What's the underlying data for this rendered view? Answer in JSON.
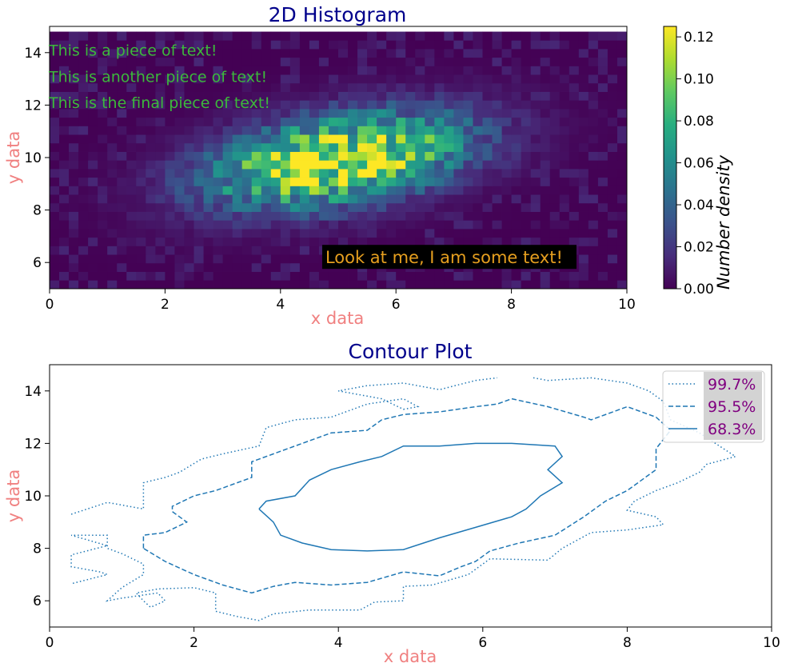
{
  "chart_data": [
    {
      "type": "heatmap",
      "title": "2D Histogram",
      "xlabel": "x data",
      "ylabel": "y data",
      "xlim": [
        0,
        10
      ],
      "ylim": [
        5,
        15
      ],
      "xticks": [
        "0",
        "2",
        "4",
        "6",
        "8",
        "10"
      ],
      "yticks": [
        "6",
        "8",
        "10",
        "12",
        "14"
      ],
      "bins": {
        "nx": 60,
        "ny": 30,
        "x_range": [
          0,
          10
        ],
        "y_range": [
          5,
          14.8
        ]
      },
      "distribution": {
        "kind": "correlated-gaussian",
        "mean_x": 5.0,
        "mean_y": 9.9,
        "sd_x": 1.55,
        "sd_y": 1.25,
        "correlation": 0.4
      },
      "peak_density": 0.125,
      "colorbar": {
        "label": "Number density",
        "range": [
          0,
          0.125
        ],
        "ticks": [
          "0.00",
          "0.02",
          "0.04",
          "0.06",
          "0.08",
          "0.10",
          "0.12"
        ],
        "colormap": "viridis"
      },
      "annotations": [
        {
          "text": "This is a piece of text!",
          "x": 0.0,
          "y": 14.1
        },
        {
          "text": "This is another piece of text!",
          "x": 0.0,
          "y": 13.1
        },
        {
          "text": "This is the final piece of text!",
          "x": 0.0,
          "y": 12.1
        },
        {
          "text": "Look at me, I am some text!",
          "x": 4.75,
          "y": 6.0
        }
      ],
      "annotation_colors": {
        "green": "#3cb83c",
        "orange": "#e69f1f",
        "box": "#000000"
      }
    },
    {
      "type": "line",
      "title": "Contour Plot",
      "xlabel": "x data",
      "ylabel": "y data",
      "xlim": [
        0,
        10
      ],
      "ylim": [
        5,
        15
      ],
      "xticks": [
        "0",
        "2",
        "4",
        "6",
        "8",
        "10"
      ],
      "yticks": [
        "6",
        "8",
        "10",
        "12",
        "14"
      ],
      "legend": {
        "position": "top-right"
      },
      "series": [
        {
          "name": "99.7%",
          "style": "dotted",
          "paths": [
            [
              [
                0.3,
                9.3
              ],
              [
                0.8,
                9.75
              ],
              [
                1.3,
                9.5
              ],
              [
                1.3,
                10.5
              ],
              [
                1.6,
                10.7
              ],
              [
                1.8,
                10.9
              ],
              [
                2.1,
                11.4
              ],
              [
                2.4,
                11.6
              ],
              [
                2.9,
                11.9
              ],
              [
                3.0,
                12.6
              ],
              [
                3.4,
                12.9
              ],
              [
                3.9,
                13.0
              ],
              [
                4.4,
                13.5
              ],
              [
                4.9,
                13.7
              ],
              [
                5.1,
                13.4
              ],
              [
                4.9,
                13.3
              ],
              [
                4.6,
                13.7
              ],
              [
                4.0,
                14.0
              ],
              [
                4.4,
                14.2
              ],
              [
                4.9,
                14.3
              ],
              [
                5.4,
                14.05
              ],
              [
                5.9,
                14.4
              ],
              [
                6.2,
                14.5
              ]
            ],
            [
              [
                6.7,
                14.5
              ],
              [
                6.9,
                14.4
              ],
              [
                7.5,
                14.5
              ],
              [
                8.0,
                14.3
              ],
              [
                8.3,
                14.0
              ],
              [
                8.5,
                13.6
              ],
              [
                8.6,
                12.9
              ],
              [
                9.0,
                12.4
              ],
              [
                9.5,
                11.5
              ],
              [
                9.1,
                11.2
              ],
              [
                9.0,
                10.9
              ],
              [
                8.7,
                10.5
              ],
              [
                8.4,
                10.2
              ],
              [
                8.1,
                9.8
              ],
              [
                8.0,
                9.45
              ],
              [
                8.4,
                9.2
              ],
              [
                8.5,
                8.9
              ],
              [
                8.0,
                8.7
              ],
              [
                7.5,
                8.6
              ],
              [
                7.1,
                8.0
              ],
              [
                6.9,
                7.55
              ],
              [
                6.1,
                7.6
              ],
              [
                5.8,
                7.0
              ],
              [
                5.3,
                6.6
              ],
              [
                4.9,
                6.55
              ],
              [
                4.9,
                6.0
              ],
              [
                4.5,
                5.95
              ],
              [
                4.3,
                5.65
              ],
              [
                3.6,
                5.65
              ],
              [
                3.1,
                5.5
              ],
              [
                2.9,
                5.25
              ],
              [
                2.6,
                5.4
              ],
              [
                2.3,
                5.6
              ],
              [
                2.3,
                6.3
              ],
              [
                2.0,
                6.5
              ],
              [
                1.5,
                6.45
              ],
              [
                1.2,
                6.3
              ],
              [
                1.3,
                6.0
              ],
              [
                1.4,
                5.75
              ],
              [
                1.6,
                6.0
              ],
              [
                1.5,
                6.3
              ],
              [
                1.0,
                6.1
              ],
              [
                0.8,
                6.0
              ],
              [
                1.0,
                6.5
              ],
              [
                1.3,
                7.0
              ],
              [
                1.3,
                7.4
              ],
              [
                1.0,
                7.8
              ],
              [
                0.8,
                8.0
              ],
              [
                0.8,
                8.5
              ],
              [
                0.3,
                8.5
              ],
              [
                0.8,
                8.1
              ],
              [
                0.3,
                7.75
              ],
              [
                0.3,
                7.3
              ],
              [
                0.7,
                7.1
              ],
              [
                0.8,
                7.0
              ],
              [
                0.3,
                6.65
              ]
            ]
          ]
        },
        {
          "name": "95.5%",
          "style": "dashed",
          "paths": [
            [
              [
                1.3,
                8.0
              ],
              [
                1.3,
                8.5
              ],
              [
                1.6,
                8.6
              ],
              [
                1.9,
                9.0
              ],
              [
                1.7,
                9.4
              ],
              [
                1.7,
                9.6
              ],
              [
                2.0,
                10.0
              ],
              [
                2.3,
                10.2
              ],
              [
                2.8,
                10.7
              ],
              [
                2.8,
                11.3
              ],
              [
                3.2,
                11.7
              ],
              [
                3.5,
                12.0
              ],
              [
                3.9,
                12.4
              ],
              [
                4.4,
                12.5
              ],
              [
                4.6,
                12.9
              ],
              [
                4.9,
                13.1
              ],
              [
                5.4,
                13.2
              ],
              [
                5.9,
                13.4
              ],
              [
                6.2,
                13.5
              ],
              [
                6.4,
                13.7
              ],
              [
                6.9,
                13.4
              ],
              [
                7.4,
                13.0
              ],
              [
                7.5,
                12.9
              ],
              [
                8.0,
                13.4
              ],
              [
                8.4,
                13.0
              ],
              [
                8.6,
                12.5
              ],
              [
                8.4,
                11.8
              ],
              [
                8.4,
                11.0
              ],
              [
                8.0,
                10.2
              ],
              [
                7.7,
                9.8
              ],
              [
                7.4,
                9.2
              ],
              [
                7.0,
                8.5
              ],
              [
                6.5,
                8.2
              ],
              [
                6.1,
                7.9
              ],
              [
                5.9,
                7.5
              ],
              [
                5.7,
                7.3
              ],
              [
                5.4,
                6.95
              ],
              [
                4.9,
                7.1
              ],
              [
                4.4,
                6.7
              ],
              [
                3.9,
                6.6
              ],
              [
                3.4,
                6.7
              ],
              [
                3.1,
                6.55
              ],
              [
                2.8,
                6.3
              ],
              [
                2.4,
                6.6
              ],
              [
                2.0,
                7.0
              ],
              [
                1.6,
                7.5
              ],
              [
                1.3,
                8.0
              ]
            ]
          ]
        },
        {
          "name": "68.3%",
          "style": "solid",
          "paths": [
            [
              [
                2.9,
                9.5
              ],
              [
                3.1,
                9.0
              ],
              [
                3.2,
                8.5
              ],
              [
                3.5,
                8.2
              ],
              [
                3.9,
                7.95
              ],
              [
                4.4,
                7.9
              ],
              [
                4.9,
                7.95
              ],
              [
                5.4,
                8.4
              ],
              [
                5.9,
                8.8
              ],
              [
                6.4,
                9.2
              ],
              [
                6.6,
                9.5
              ],
              [
                6.8,
                10.0
              ],
              [
                7.1,
                10.5
              ],
              [
                6.9,
                11.0
              ],
              [
                7.1,
                11.5
              ],
              [
                7.0,
                11.9
              ],
              [
                6.4,
                12.0
              ],
              [
                5.9,
                12.0
              ],
              [
                5.4,
                11.9
              ],
              [
                4.9,
                11.9
              ],
              [
                4.6,
                11.5
              ],
              [
                4.3,
                11.3
              ],
              [
                3.9,
                11.0
              ],
              [
                3.6,
                10.6
              ],
              [
                3.4,
                10.0
              ],
              [
                3.0,
                9.8
              ],
              [
                2.9,
                9.5
              ]
            ]
          ]
        }
      ],
      "line_color": "#1f77b4",
      "legend_text_color": "#800080",
      "legend_box_color": "#d3d3d3"
    }
  ],
  "colors": {
    "title": "#00008b",
    "axis_label": "#f08080"
  }
}
